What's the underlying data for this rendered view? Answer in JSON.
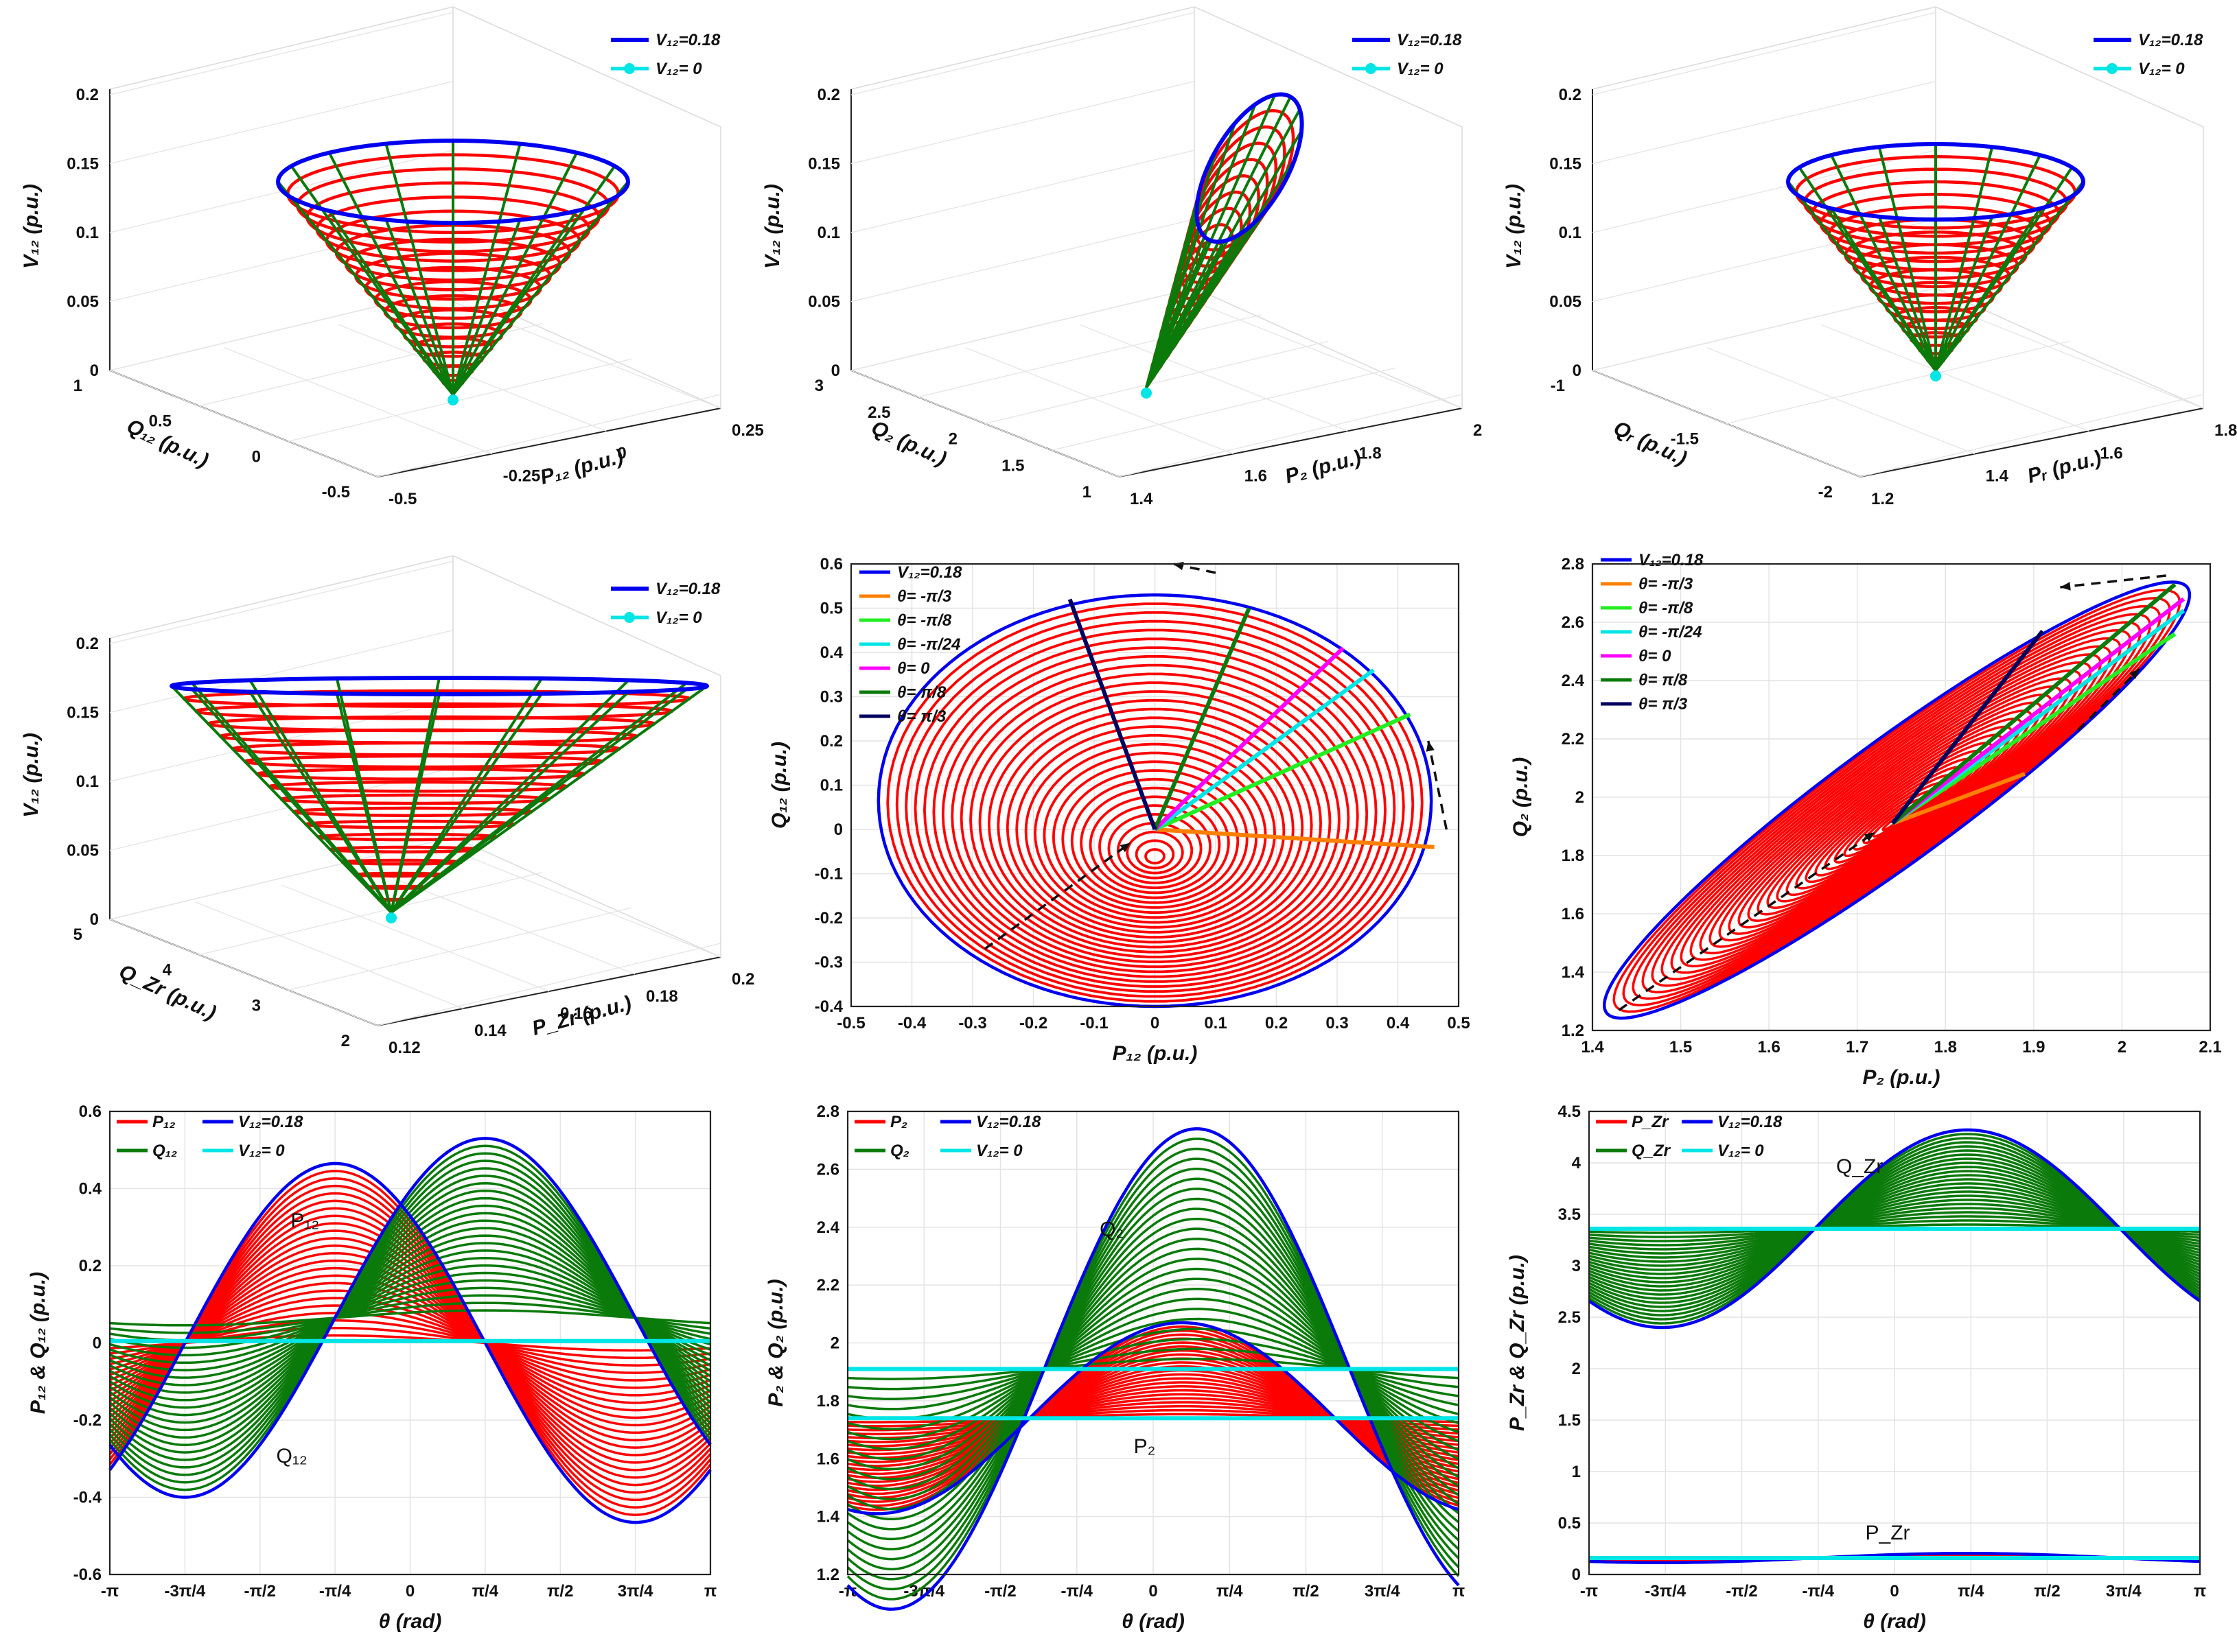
{
  "figure": {
    "colors": {
      "red": "#ff0000",
      "green": "#0a7a0a",
      "blue": "#0000ee",
      "cyan": "#00e5e5",
      "orange": "#ff8000",
      "lime": "#22ee22",
      "magenta": "#ff00ff",
      "navy": "#00005e"
    },
    "pi_ticks": [
      "-π",
      "-3π/4",
      "-π/2",
      "-π/4",
      "0",
      "π/4",
      "π/2",
      "3π/4",
      "π"
    ]
  },
  "chart_data": [
    {
      "id": "p11",
      "type": "surface3d",
      "title": "",
      "xlabel": "P₁₂ (p.u.)",
      "ylabel": "Q₁₂ (p.u.)",
      "zlabel": "V₁₂ (p.u.)",
      "xticks": [
        "-0.5",
        "-0.25",
        "0",
        "0.25"
      ],
      "yticks": [
        "-0.5",
        "0",
        "0.5",
        "1"
      ],
      "zticks": [
        "0",
        "0.05",
        "0.1",
        "0.15",
        "0.2"
      ],
      "legend": [
        "V₁₂=0.18",
        "V₁₂= 0"
      ],
      "zmax": 0.18,
      "shape": "wide-cone"
    },
    {
      "id": "p12",
      "type": "surface3d",
      "xlabel": "P₂ (p.u.)",
      "ylabel": "Q₂ (p.u.)",
      "zlabel": "V₁₂ (p.u.)",
      "xticks": [
        "1.4",
        "1.6",
        "1.8",
        "2"
      ],
      "yticks": [
        "1",
        "1.5",
        "2",
        "2.5",
        "3"
      ],
      "zticks": [
        "0",
        "0.05",
        "0.1",
        "0.15",
        "0.2"
      ],
      "legend": [
        "V₁₂=0.18",
        "V₁₂= 0"
      ],
      "zmax": 0.18,
      "shape": "tilted-cone"
    },
    {
      "id": "p13",
      "type": "surface3d",
      "xlabel": "Pᵣ (p.u.)",
      "ylabel": "Qᵣ (p.u.)",
      "zlabel": "V₁₂ (p.u.)",
      "xticks": [
        "1.2",
        "1.4",
        "1.6",
        "1.8"
      ],
      "yticks": [
        "-2",
        "-1.5",
        "-1"
      ],
      "zticks": [
        "0",
        "0.05",
        "0.1",
        "0.15",
        "0.2"
      ],
      "legend": [
        "V₁₂=0.18",
        "V₁₂= 0"
      ],
      "zmax": 0.18,
      "shape": "cone"
    },
    {
      "id": "p21",
      "type": "surface3d",
      "xlabel": "P_Zr (p.u.)",
      "ylabel": "Q_Zr (p.u.)",
      "zlabel": "V₁₂ (p.u.)",
      "xticks": [
        "0.12",
        "0.14",
        "0.16",
        "0.18",
        "0.2"
      ],
      "yticks": [
        "2",
        "3",
        "4",
        "5"
      ],
      "zticks": [
        "0",
        "0.05",
        "0.1",
        "0.15",
        "0.2"
      ],
      "legend": [
        "V₁₂=0.18",
        "V₁₂= 0"
      ],
      "zmax": 0.18,
      "shape": "flat-cone"
    },
    {
      "id": "p22",
      "type": "line",
      "xlabel": "P₁₂ (p.u.)",
      "ylabel": "Q₁₂ (p.u.)",
      "xlim": [
        -0.5,
        0.5
      ],
      "ylim": [
        -0.4,
        0.6
      ],
      "xticks": [
        "-0.5",
        "-0.4",
        "-0.3",
        "-0.2",
        "-0.1",
        "0",
        "0.1",
        "0.2",
        "0.3",
        "0.4",
        "0.5"
      ],
      "yticks": [
        "-0.4",
        "-0.3",
        "-0.2",
        "-0.1",
        "0",
        "0.1",
        "0.2",
        "0.3",
        "0.4",
        "0.5",
        "0.6"
      ],
      "ellipse": {
        "cx": 0,
        "cy": 0.065,
        "rx": 0.455,
        "ry": 0.465
      },
      "rings": 30,
      "legend": [
        "V₁₂=0.18",
        "θ= -π/3",
        "θ= -π/8",
        "θ= -π/24",
        "θ= 0",
        "θ= π/8",
        "θ= π/3"
      ],
      "rays": [
        {
          "name": "θ= -π/3",
          "color": "orange",
          "end": [
            0.46,
            -0.04
          ]
        },
        {
          "name": "θ= -π/8",
          "color": "lime",
          "end": [
            0.42,
            0.26
          ]
        },
        {
          "name": "θ= -π/24",
          "color": "cyan",
          "end": [
            0.36,
            0.36
          ]
        },
        {
          "name": "θ= 0",
          "color": "magenta",
          "end": [
            0.31,
            0.41
          ]
        },
        {
          "name": "θ= π/8",
          "color": "green",
          "end": [
            0.155,
            0.5
          ]
        },
        {
          "name": "θ= π/3",
          "color": "navy",
          "end": [
            -0.14,
            0.52
          ]
        }
      ]
    },
    {
      "id": "p23",
      "type": "line",
      "xlabel": "P₂ (p.u.)",
      "ylabel": "Q₂ (p.u.)",
      "xlim": [
        1.4,
        2.1
      ],
      "ylim": [
        1.2,
        2.8
      ],
      "xticks": [
        "1.4",
        "1.5",
        "1.6",
        "1.7",
        "1.8",
        "1.9",
        "2",
        "2.1"
      ],
      "yticks": [
        "1.2",
        "1.4",
        "1.6",
        "1.8",
        "2",
        "2.2",
        "2.4",
        "2.6",
        "2.8"
      ],
      "center": [
        1.74,
        1.91
      ],
      "end_a": [
        2.07,
        2.73
      ],
      "end_b": [
        1.42,
        1.25
      ],
      "halfwidth": 0.12,
      "rings": 30,
      "legend": [
        "V₁₂=0.18",
        "θ= -π/3",
        "θ= -π/8",
        "θ= -π/24",
        "θ= 0",
        "θ= π/8",
        "θ= π/3"
      ],
      "rays": [
        {
          "name": "θ= -π/3",
          "color": "orange",
          "end": [
            1.89,
            2.08
          ]
        },
        {
          "name": "θ= -π/8",
          "color": "lime",
          "end": [
            2.06,
            2.56
          ]
        },
        {
          "name": "θ= -π/24",
          "color": "cyan",
          "end": [
            2.07,
            2.64
          ]
        },
        {
          "name": "θ= 0",
          "color": "magenta",
          "end": [
            2.07,
            2.68
          ]
        },
        {
          "name": "θ= π/8",
          "color": "green",
          "end": [
            2.06,
            2.73
          ]
        },
        {
          "name": "θ= π/3",
          "color": "navy",
          "end": [
            1.91,
            2.57
          ]
        }
      ]
    },
    {
      "id": "p31",
      "type": "line",
      "xlabel": "θ (rad)",
      "ylabel": "P₁₂ & Q₁₂ (p.u.)",
      "xlim": [
        -3.1416,
        3.1416
      ],
      "ylim": [
        -0.6,
        0.6
      ],
      "yticks": [
        "-0.6",
        "-0.4",
        "-0.2",
        "0",
        "0.2",
        "0.4",
        "0.6"
      ],
      "legend": [
        "P₁₂",
        "V₁₂=0.18",
        "Q₁₂",
        "V₁₂= 0"
      ],
      "series": [
        {
          "name": "P₁₂",
          "color": "red",
          "offset": 0.0,
          "amp": 0.465,
          "phase": -0.785
        },
        {
          "name": "Q₁₂",
          "color": "green",
          "offset": 0.065,
          "amp": 0.465,
          "phase": 0.785
        }
      ],
      "baseline": 0.005,
      "labels": [
        {
          "text": "P₁₂",
          "at": [
            -1.25,
            0.3
          ]
        },
        {
          "text": "Q₁₂",
          "at": [
            -1.4,
            -0.31
          ]
        }
      ]
    },
    {
      "id": "p32",
      "type": "line",
      "xlabel": "θ (rad)",
      "ylabel": "P₂ & Q₂ (p.u.)",
      "xlim": [
        -3.1416,
        3.1416
      ],
      "ylim": [
        1.2,
        2.8
      ],
      "yticks": [
        "1.2",
        "1.4",
        "1.6",
        "1.8",
        "2",
        "2.2",
        "2.4",
        "2.6",
        "2.8"
      ],
      "legend": [
        "P₂",
        "V₁₂=0.18",
        "Q₂",
        "V₁₂= 0"
      ],
      "series": [
        {
          "name": "P₂",
          "color": "red",
          "offset": 1.74,
          "amp": 0.33,
          "phase": 0.3
        },
        {
          "name": "Q₂",
          "color": "green",
          "offset": 1.91,
          "amp": 0.83,
          "phase": 0.45
        }
      ],
      "baselines": [
        1.74,
        1.91
      ],
      "labels": [
        {
          "text": "Q₂",
          "at": [
            -0.55,
            2.37
          ]
        },
        {
          "text": "P₂",
          "at": [
            -0.2,
            1.62
          ]
        }
      ]
    },
    {
      "id": "p33",
      "type": "line",
      "xlabel": "θ (rad)",
      "ylabel": "P_Zr & Q_Zr (p.u.)",
      "xlim": [
        -3.1416,
        3.1416
      ],
      "ylim": [
        0,
        4.5
      ],
      "yticks": [
        "0",
        "0.5",
        "1",
        "1.5",
        "2",
        "2.5",
        "3",
        "3.5",
        "4",
        "4.5"
      ],
      "legend": [
        "P_Zr",
        "V₁₂=0.18",
        "Q_Zr",
        "V₁₂= 0"
      ],
      "series": [
        {
          "name": "P_Zr",
          "color": "red",
          "offset": 0.16,
          "amp": 0.045,
          "phase": 0.75
        },
        {
          "name": "Q_Zr",
          "color": "green",
          "offset": 3.36,
          "amp": 0.96,
          "phase": 0.75
        }
      ],
      "baselines": [
        0.16,
        3.36
      ],
      "labels": [
        {
          "text": "Q_Zr",
          "at": [
            -0.6,
            3.9
          ]
        },
        {
          "text": "P_Zr",
          "at": [
            -0.3,
            0.34
          ]
        }
      ]
    }
  ]
}
